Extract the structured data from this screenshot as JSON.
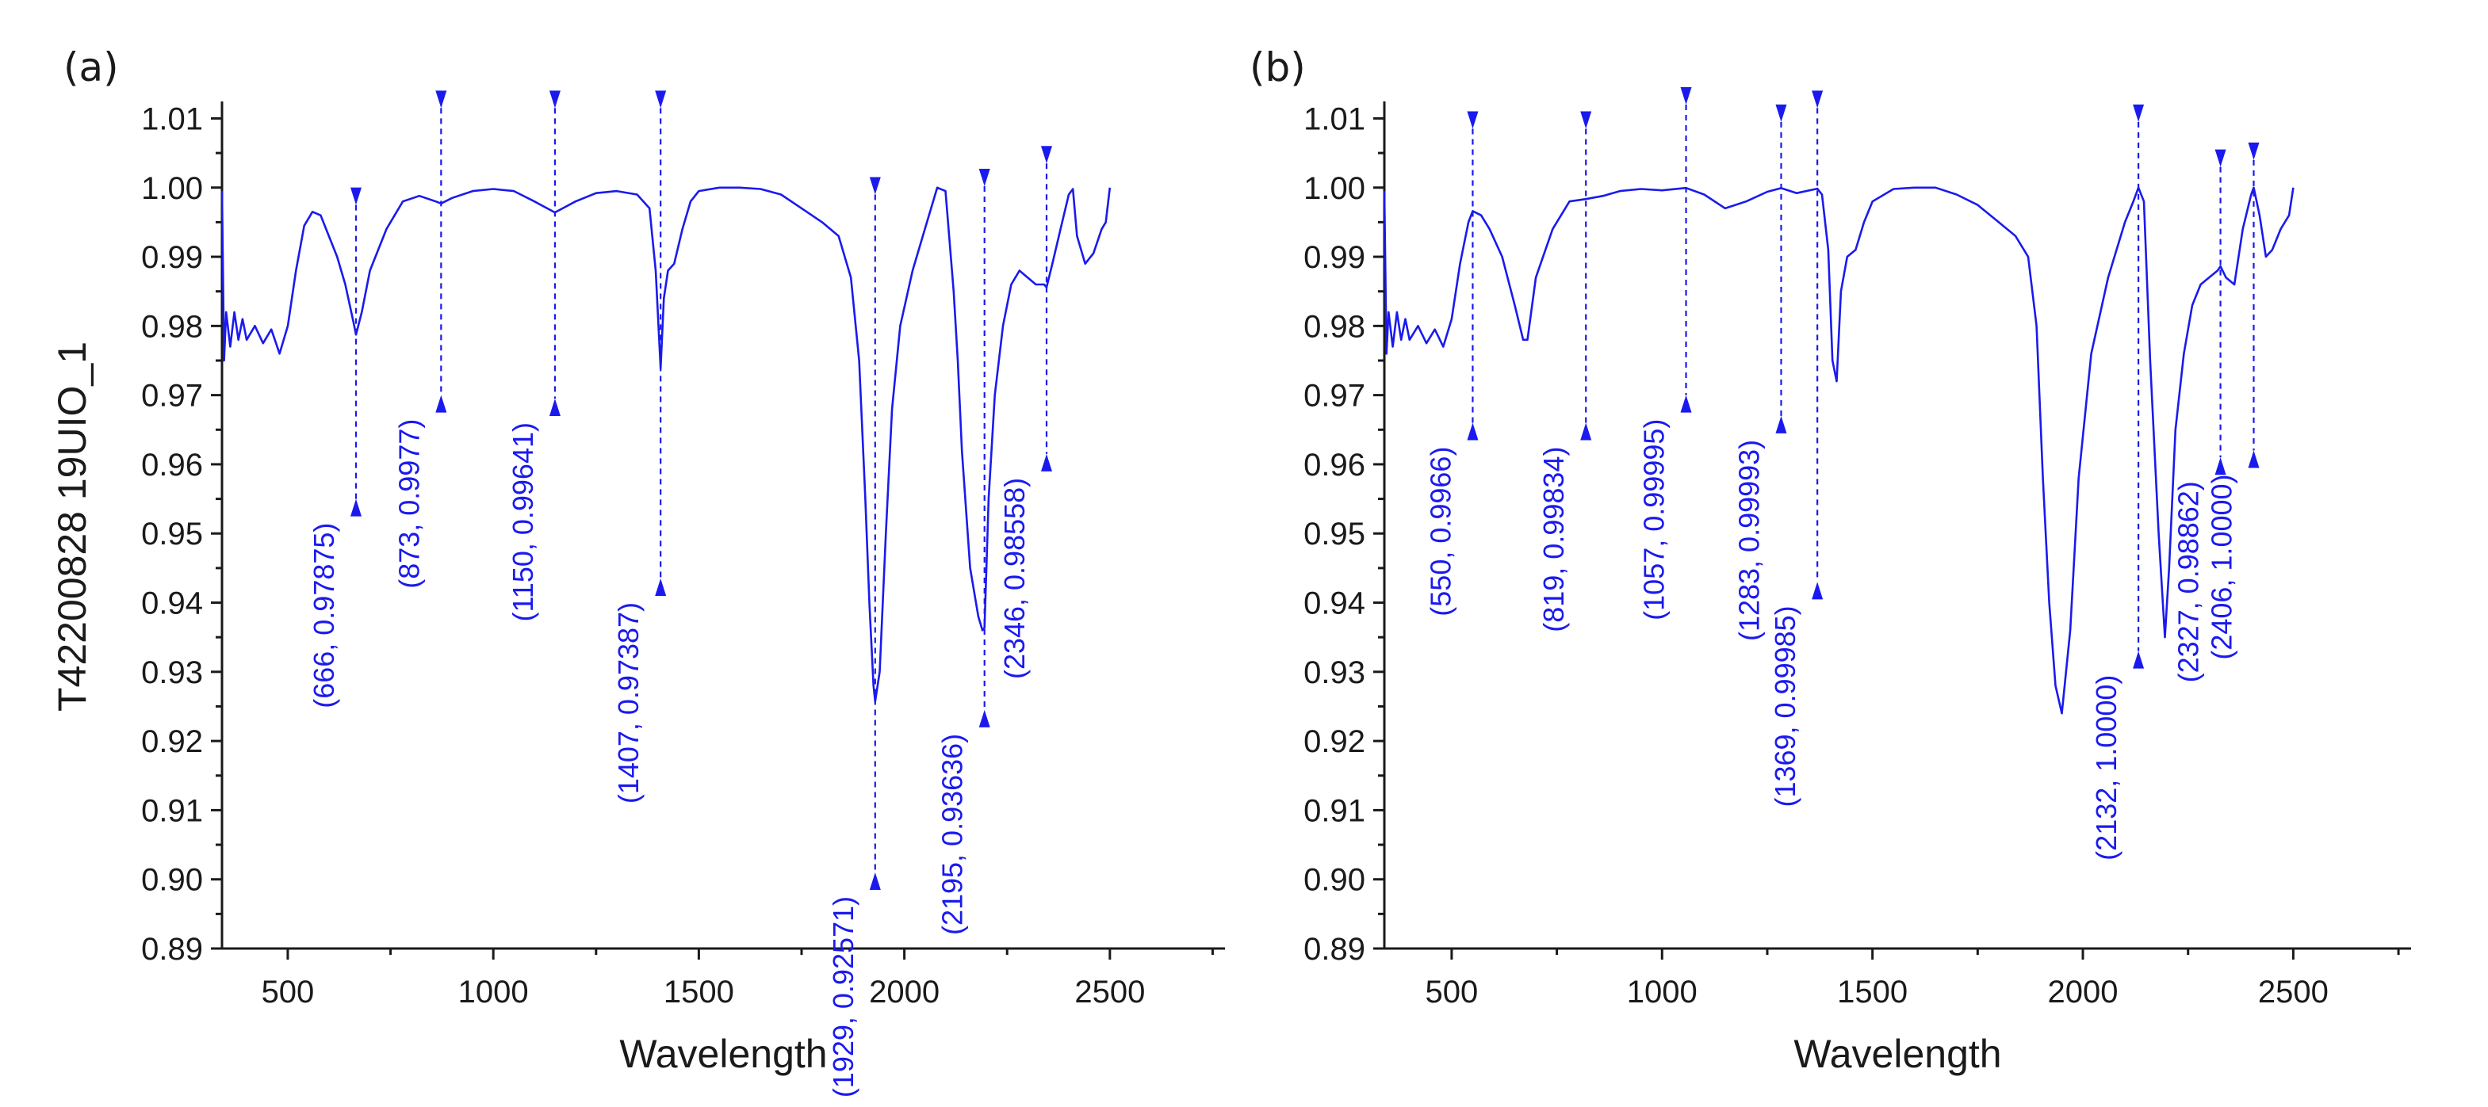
{
  "chart_data": [
    {
      "panel_label": "(a)",
      "type": "line",
      "xlabel": "Wavelength",
      "ylabel": "T42200828 19UIO_1",
      "xlim": [
        340,
        2780
      ],
      "ylim": [
        0.89,
        1.012
      ],
      "xticks": [
        500,
        1000,
        1500,
        2000,
        2500
      ],
      "xtick_labels": [
        "500",
        "1000",
        "1500",
        "2000",
        "2500"
      ],
      "yticks": [
        0.89,
        0.9,
        0.91,
        0.92,
        0.93,
        0.94,
        0.95,
        0.96,
        0.97,
        0.98,
        0.99,
        1.0,
        1.01
      ],
      "ytick_labels": [
        "0.89",
        "0.90",
        "0.91",
        "0.92",
        "0.93",
        "0.94",
        "0.95",
        "0.96",
        "0.97",
        "0.98",
        "0.99",
        "1.00",
        "1.01"
      ],
      "series": [
        {
          "name": "spectrum",
          "x": [
            340,
            345,
            350,
            360,
            370,
            380,
            390,
            400,
            420,
            440,
            460,
            480,
            500,
            520,
            540,
            560,
            580,
            600,
            620,
            640,
            660,
            666,
            680,
            700,
            740,
            780,
            820,
            860,
            873,
            900,
            950,
            1000,
            1050,
            1100,
            1150,
            1200,
            1250,
            1300,
            1350,
            1380,
            1395,
            1407,
            1415,
            1425,
            1440,
            1460,
            1480,
            1500,
            1550,
            1600,
            1650,
            1700,
            1750,
            1800,
            1840,
            1870,
            1890,
            1905,
            1915,
            1925,
            1929,
            1940,
            1955,
            1970,
            1990,
            2020,
            2050,
            2080,
            2100,
            2120,
            2130,
            2140,
            2160,
            2180,
            2190,
            2195,
            2205,
            2220,
            2240,
            2260,
            2280,
            2300,
            2320,
            2340,
            2346,
            2360,
            2380,
            2400,
            2410,
            2420,
            2440,
            2460,
            2480,
            2490,
            2500
          ],
          "y": [
            0.9995,
            0.975,
            0.982,
            0.977,
            0.982,
            0.978,
            0.981,
            0.978,
            0.98,
            0.9775,
            0.9795,
            0.976,
            0.98,
            0.988,
            0.9945,
            0.9965,
            0.996,
            0.993,
            0.99,
            0.986,
            0.9805,
            0.97875,
            0.982,
            0.988,
            0.994,
            0.998,
            0.9988,
            0.998,
            0.9977,
            0.9985,
            0.9995,
            0.9998,
            0.9995,
            0.998,
            0.99641,
            0.998,
            0.9992,
            0.9995,
            0.999,
            0.997,
            0.988,
            0.97387,
            0.984,
            0.988,
            0.989,
            0.994,
            0.998,
            0.9995,
            1.0,
            1.0,
            0.9998,
            0.999,
            0.997,
            0.995,
            0.993,
            0.987,
            0.975,
            0.955,
            0.94,
            0.928,
            0.92571,
            0.93,
            0.95,
            0.968,
            0.98,
            0.988,
            0.994,
            1.0,
            0.9995,
            0.985,
            0.975,
            0.962,
            0.945,
            0.938,
            0.936,
            0.93636,
            0.955,
            0.97,
            0.98,
            0.986,
            0.988,
            0.987,
            0.986,
            0.986,
            0.98558,
            0.989,
            0.994,
            0.999,
            0.9998,
            0.993,
            0.989,
            0.9905,
            0.994,
            0.995,
            1.0
          ]
        }
      ],
      "annotations": [
        {
          "x": 666,
          "text": "(666, 0.97875)",
          "marker_top": 0.9975,
          "marker_bottom": 0.955
        },
        {
          "x": 873,
          "text": "(873, 0.9977)",
          "marker_top": 1.0115,
          "marker_bottom": 0.97
        },
        {
          "x": 1150,
          "text": "(1150, 0.99641)",
          "marker_top": 1.0115,
          "marker_bottom": 0.9695
        },
        {
          "x": 1407,
          "text": "(1407, 0.97387)",
          "marker_top": 1.0115,
          "marker_bottom": 0.9435
        },
        {
          "x": 1929,
          "text": "(1929, 0.92571)",
          "marker_top": 0.999,
          "marker_bottom": 0.901
        },
        {
          "x": 2195,
          "text": "(2195, 0.93636)",
          "marker_top": 1.0002,
          "marker_bottom": 0.9245
        },
        {
          "x": 2346,
          "text": "(2346, 0.98558)",
          "marker_top": 1.0035,
          "marker_bottom": 0.9615
        }
      ]
    },
    {
      "panel_label": "(b)",
      "type": "line",
      "xlabel": "Wavelength",
      "ylabel": "",
      "xlim": [
        340,
        2780
      ],
      "ylim": [
        0.89,
        1.012
      ],
      "xticks": [
        500,
        1000,
        1500,
        2000,
        2500
      ],
      "xtick_labels": [
        "500",
        "1000",
        "1500",
        "2000",
        "2500"
      ],
      "yticks": [
        0.89,
        0.9,
        0.91,
        0.92,
        0.93,
        0.94,
        0.95,
        0.96,
        0.97,
        0.98,
        0.99,
        1.0,
        1.01
      ],
      "ytick_labels": [
        "0.89",
        "0.90",
        "0.91",
        "0.92",
        "0.93",
        "0.94",
        "0.95",
        "0.96",
        "0.97",
        "0.98",
        "0.99",
        "1.00",
        "1.01"
      ],
      "series": [
        {
          "name": "spectrum",
          "x": [
            340,
            345,
            350,
            360,
            370,
            380,
            390,
            400,
            420,
            440,
            460,
            480,
            500,
            520,
            540,
            550,
            570,
            590,
            620,
            650,
            670,
            680,
            700,
            740,
            780,
            819,
            860,
            900,
            950,
            1000,
            1057,
            1100,
            1150,
            1200,
            1250,
            1283,
            1320,
            1369,
            1380,
            1395,
            1405,
            1415,
            1425,
            1440,
            1460,
            1480,
            1500,
            1550,
            1600,
            1650,
            1700,
            1750,
            1800,
            1840,
            1870,
            1890,
            1905,
            1920,
            1935,
            1950,
            1970,
            1990,
            2020,
            2060,
            2100,
            2120,
            2132,
            2145,
            2160,
            2180,
            2195,
            2205,
            2220,
            2240,
            2260,
            2280,
            2300,
            2320,
            2327,
            2340,
            2360,
            2380,
            2400,
            2406,
            2420,
            2435,
            2450,
            2470,
            2490,
            2500
          ],
          "y": [
            0.9995,
            0.976,
            0.982,
            0.977,
            0.982,
            0.978,
            0.981,
            0.978,
            0.98,
            0.9775,
            0.9795,
            0.977,
            0.981,
            0.989,
            0.995,
            0.9966,
            0.996,
            0.994,
            0.99,
            0.983,
            0.978,
            0.978,
            0.987,
            0.994,
            0.998,
            0.99834,
            0.9988,
            0.9995,
            0.9998,
            0.9996,
            0.99995,
            0.999,
            0.997,
            0.998,
            0.9994,
            0.99993,
            0.9992,
            0.99985,
            0.999,
            0.991,
            0.975,
            0.972,
            0.985,
            0.99,
            0.991,
            0.995,
            0.998,
            0.9998,
            1.0,
            1.0,
            0.999,
            0.9975,
            0.995,
            0.993,
            0.99,
            0.98,
            0.958,
            0.94,
            0.928,
            0.924,
            0.936,
            0.958,
            0.976,
            0.987,
            0.995,
            0.998,
            1.0,
            0.998,
            0.975,
            0.95,
            0.935,
            0.945,
            0.965,
            0.976,
            0.983,
            0.986,
            0.987,
            0.988,
            0.98862,
            0.987,
            0.986,
            0.994,
            0.999,
            1.0,
            0.996,
            0.99,
            0.991,
            0.994,
            0.996,
            1.0
          ]
        }
      ],
      "annotations": [
        {
          "x": 550,
          "text": "(550, 0.9966)",
          "marker_top": 1.0085,
          "marker_bottom": 0.966
        },
        {
          "x": 819,
          "text": "(819, 0.99834)",
          "marker_top": 1.0085,
          "marker_bottom": 0.966
        },
        {
          "x": 1057,
          "text": "(1057, 0.99995)",
          "marker_top": 1.012,
          "marker_bottom": 0.97
        },
        {
          "x": 1283,
          "text": "(1283, 0.99993)",
          "marker_top": 1.0095,
          "marker_bottom": 0.967
        },
        {
          "x": 1369,
          "text": "(1369, 0.99985)",
          "marker_top": 1.0115,
          "marker_bottom": 0.943
        },
        {
          "x": 2132,
          "text": "(2132, 1.0000)",
          "marker_top": 1.0095,
          "marker_bottom": 0.933
        },
        {
          "x": 2327,
          "text": "(2327, 0.98862)",
          "marker_top": 1.003,
          "marker_bottom": 0.961
        },
        {
          "x": 2406,
          "text": "(2406, 1.0000)",
          "marker_top": 1.004,
          "marker_bottom": 0.962
        }
      ]
    }
  ]
}
